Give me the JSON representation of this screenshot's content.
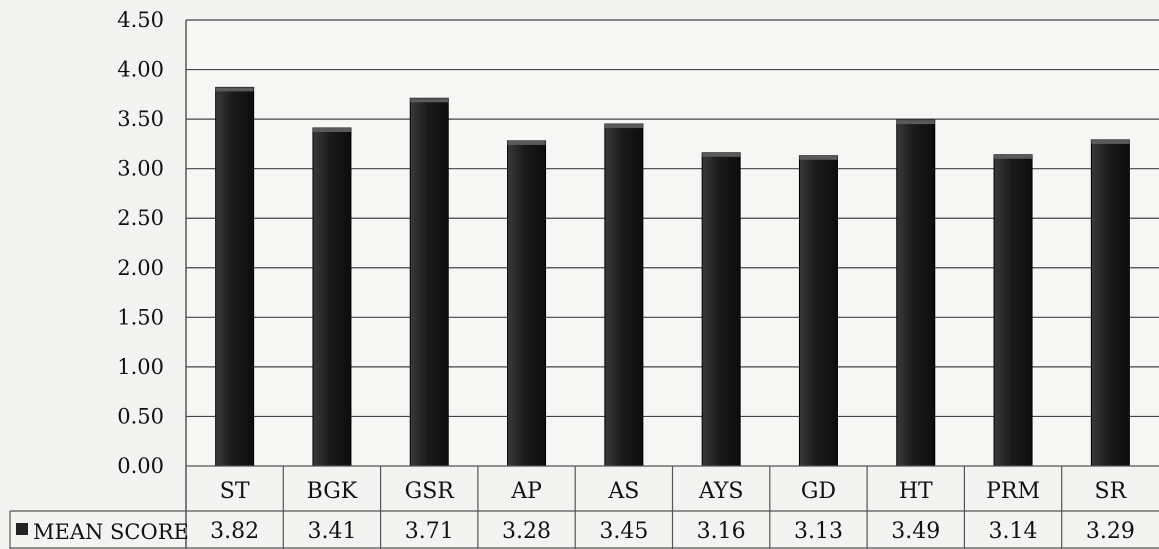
{
  "chart_data": {
    "type": "bar",
    "categories": [
      "ST",
      "BGK",
      "GSR",
      "AP",
      "AS",
      "AYS",
      "GD",
      "HT",
      "PRM",
      "SR"
    ],
    "series": [
      {
        "name": "MEAN SCORE",
        "values": [
          3.82,
          3.41,
          3.71,
          3.28,
          3.45,
          3.16,
          3.13,
          3.49,
          3.14,
          3.29
        ],
        "labels": [
          "3.82",
          "3.41",
          "3.71",
          "3.28",
          "3.45",
          "3.16",
          "3.13",
          "3.49",
          "3.14",
          "3.29"
        ],
        "color": "#1c1c1c"
      }
    ],
    "y_ticks": [
      "0.00",
      "0.50",
      "1.00",
      "1.50",
      "2.00",
      "2.50",
      "3.00",
      "3.50",
      "4.00",
      "4.50"
    ],
    "ylim": [
      0,
      4.5
    ],
    "grid": true,
    "data_table": true,
    "legend_position": "data-table"
  }
}
